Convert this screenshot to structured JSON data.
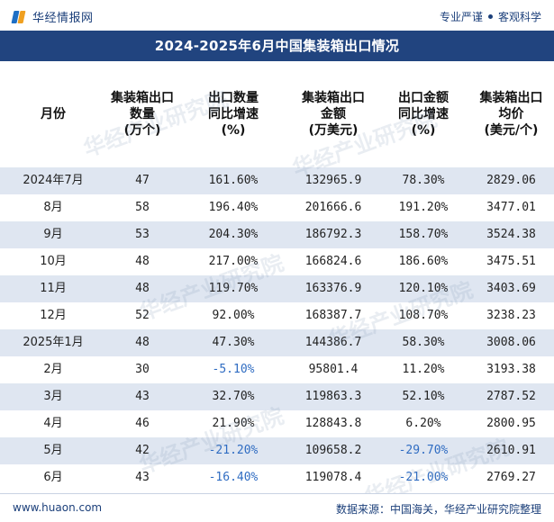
{
  "brand": {
    "name": "华经情报网",
    "slogan_a": "专业严谨",
    "slogan_b": "客观科学"
  },
  "title": "2024-2025年6月中国集装箱出口情况",
  "columns": [
    "月份",
    "集装箱出口\n数量\n(万个)",
    "出口数量\n同比增速\n(%)",
    "集装箱出口\n金额\n(万美元)",
    "出口金额\n同比增速\n(%)",
    "集装箱出口\n均价\n(美元/个)"
  ],
  "rows": [
    [
      "2024年7月",
      "47",
      "161.60%",
      "132965.9",
      "78.30%",
      "2829.06"
    ],
    [
      "8月",
      "58",
      "196.40%",
      "201666.6",
      "191.20%",
      "3477.01"
    ],
    [
      "9月",
      "53",
      "204.30%",
      "186792.3",
      "158.70%",
      "3524.38"
    ],
    [
      "10月",
      "48",
      "217.00%",
      "166824.6",
      "186.60%",
      "3475.51"
    ],
    [
      "11月",
      "48",
      "119.70%",
      "163376.9",
      "120.10%",
      "3403.69"
    ],
    [
      "12月",
      "52",
      "92.00%",
      "168387.7",
      "108.70%",
      "3238.23"
    ],
    [
      "2025年1月",
      "48",
      "47.30%",
      "144386.7",
      "58.30%",
      "3008.06"
    ],
    [
      "2月",
      "30",
      "-5.10%",
      "95801.4",
      "11.20%",
      "3193.38"
    ],
    [
      "3月",
      "43",
      "32.70%",
      "119863.3",
      "52.10%",
      "2787.52"
    ],
    [
      "4月",
      "46",
      "21.90%",
      "128843.8",
      "6.20%",
      "2800.95"
    ],
    [
      "5月",
      "42",
      "-21.20%",
      "109658.2",
      "-29.70%",
      "2610.91"
    ],
    [
      "6月",
      "43",
      "-16.40%",
      "119078.4",
      "-21.00%",
      "2769.27"
    ]
  ],
  "footer": {
    "url": "www.huaon.com",
    "source": "数据来源：中国海关，华经产业研究院整理"
  },
  "watermark": "华经产业研究院",
  "colors": {
    "title_bg": "#21447f",
    "stripe": "#dfe6f1",
    "negative": "#2f6cc2",
    "brand_text": "#1b3f7a"
  }
}
